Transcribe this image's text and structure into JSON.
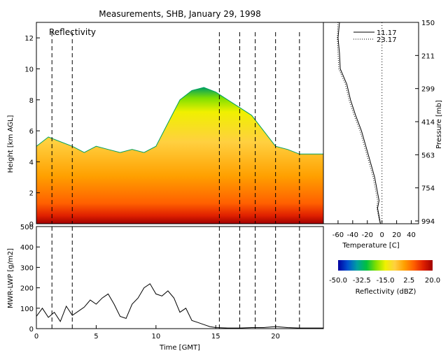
{
  "title": "Measurements, SHB, January 29, 1998",
  "colors": {
    "dashed_lines": "#000000",
    "reflectivity_scale": [
      "#0000a0",
      "#0050d0",
      "#00a0a0",
      "#00c040",
      "#80e000",
      "#f0f000",
      "#ffd040",
      "#ffa000",
      "#ff6000",
      "#e02000",
      "#a00000"
    ]
  },
  "chart_data": [
    {
      "type": "heatmap",
      "annotation": "Reflectivity",
      "xlabel": "Time [GMT]",
      "ylabel": "Height [km AGL]",
      "xlim": [
        0,
        24
      ],
      "ylim": [
        0,
        13
      ],
      "y_ticks": [
        "0",
        "2",
        "4",
        "6",
        "8",
        "10",
        "12"
      ],
      "dashed_times": [
        1.3,
        3.0,
        15.3,
        17.0,
        18.3,
        20.0,
        22.0
      ],
      "echo_top_km": [
        [
          0,
          5.0
        ],
        [
          1,
          5.6
        ],
        [
          2,
          5.3
        ],
        [
          3,
          5.0
        ],
        [
          4,
          4.6
        ],
        [
          5,
          5.0
        ],
        [
          6,
          4.8
        ],
        [
          7,
          4.6
        ],
        [
          8,
          4.8
        ],
        [
          9,
          4.6
        ],
        [
          10,
          5.0
        ],
        [
          11,
          6.5
        ],
        [
          12,
          8.0
        ],
        [
          13,
          8.6
        ],
        [
          14,
          8.8
        ],
        [
          15,
          8.5
        ],
        [
          16,
          8.0
        ],
        [
          17,
          7.5
        ],
        [
          18,
          7.0
        ],
        [
          19,
          6.0
        ],
        [
          20,
          5.0
        ],
        [
          21,
          4.8
        ],
        [
          22,
          4.5
        ],
        [
          23,
          4.5
        ],
        [
          24,
          4.5
        ]
      ]
    },
    {
      "type": "line",
      "xlabel": "Temperature [C]",
      "x_ticks": [
        "-60",
        "-40",
        "-20",
        "0",
        "20",
        "40"
      ],
      "xlim": [
        -80,
        50
      ],
      "right_axis_label": "Pressure [mb]",
      "pressure_ticks": [
        "150",
        "211",
        "299",
        "414",
        "563",
        "754",
        "994"
      ],
      "series": [
        {
          "name": "11.17",
          "style": "solid",
          "points": [
            [
              -58,
              13
            ],
            [
              -60,
              12.0
            ],
            [
              -58,
              11.0
            ],
            [
              -57,
              10.0
            ],
            [
              -48,
              9.0
            ],
            [
              -43,
              8.0
            ],
            [
              -36,
              7.0
            ],
            [
              -28,
              6.0
            ],
            [
              -22,
              5.0
            ],
            [
              -16,
              4.0
            ],
            [
              -10,
              3.0
            ],
            [
              -6,
              2.0
            ],
            [
              -4,
              1.5
            ],
            [
              -6,
              1.0
            ],
            [
              -4,
              0.5
            ],
            [
              -2,
              0
            ]
          ]
        },
        {
          "name": "23.17",
          "style": "dotted",
          "points": [
            [
              -60,
              13
            ],
            [
              -61,
              12.0
            ],
            [
              -60,
              11.0
            ],
            [
              -59,
              10.0
            ],
            [
              -50,
              9.0
            ],
            [
              -45,
              8.0
            ],
            [
              -38,
              7.0
            ],
            [
              -30,
              6.0
            ],
            [
              -24,
              5.0
            ],
            [
              -18,
              4.0
            ],
            [
              -12,
              3.0
            ],
            [
              -8,
              2.0
            ],
            [
              -6,
              1.5
            ],
            [
              -7,
              1.0
            ],
            [
              -5,
              0.5
            ],
            [
              -3,
              0
            ]
          ]
        }
      ]
    },
    {
      "type": "line",
      "xlabel": "Time [GMT]",
      "ylabel": "MWR-LWP [g/m2]",
      "xlim": [
        0,
        24
      ],
      "ylim": [
        0,
        500
      ],
      "x_ticks": [
        "0",
        "5",
        "10",
        "15",
        "20"
      ],
      "y_ticks": [
        "0",
        "100",
        "200",
        "300",
        "400",
        "500"
      ],
      "series": [
        {
          "name": "MWR-LWP",
          "values": [
            [
              0,
              60
            ],
            [
              0.5,
              100
            ],
            [
              1,
              55
            ],
            [
              1.5,
              80
            ],
            [
              2,
              35
            ],
            [
              2.5,
              110
            ],
            [
              3,
              65
            ],
            [
              3.5,
              85
            ],
            [
              4,
              105
            ],
            [
              4.5,
              140
            ],
            [
              5,
              120
            ],
            [
              5.5,
              150
            ],
            [
              6,
              170
            ],
            [
              6.5,
              120
            ],
            [
              7,
              60
            ],
            [
              7.5,
              50
            ],
            [
              8,
              120
            ],
            [
              8.5,
              150
            ],
            [
              9,
              200
            ],
            [
              9.5,
              220
            ],
            [
              10,
              170
            ],
            [
              10.5,
              160
            ],
            [
              11,
              185
            ],
            [
              11.5,
              150
            ],
            [
              12,
              80
            ],
            [
              12.5,
              100
            ],
            [
              13,
              40
            ],
            [
              13.5,
              30
            ],
            [
              14,
              20
            ],
            [
              14.5,
              10
            ],
            [
              15,
              5
            ],
            [
              16,
              3
            ],
            [
              17,
              3
            ],
            [
              18,
              5
            ],
            [
              19,
              5
            ],
            [
              20,
              10
            ],
            [
              21,
              5
            ],
            [
              22,
              3
            ],
            [
              23,
              3
            ],
            [
              24,
              3
            ]
          ]
        }
      ]
    },
    {
      "type": "bar",
      "title": "",
      "xlabel": "Reflectivity (dBZ)",
      "tick_labels": [
        "-50.0",
        "-32.5",
        "-15.0",
        "2.5",
        "20.0"
      ],
      "range": [
        -50,
        20
      ]
    }
  ]
}
